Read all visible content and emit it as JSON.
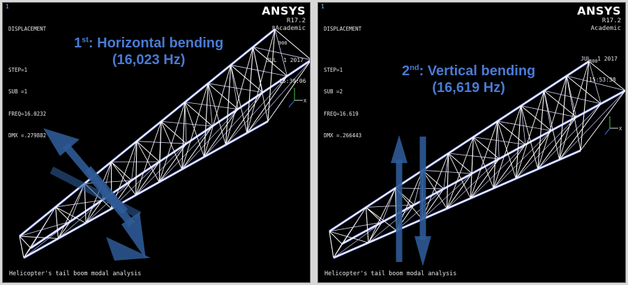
{
  "panels": [
    {
      "window_number": "1",
      "result_type": "DISPLACEMENT",
      "step": "STEP=1",
      "sub": "SUB =1",
      "freq": "FREQ=16.0232",
      "dmx": "DMX =.279882",
      "brand": "ANSYS",
      "version": "R17.2",
      "edition": "Academic",
      "date": "JUL  1 2017",
      "time": "15:39:06",
      "mode_ordinal": "1",
      "mode_ordinal_suffix": "st",
      "mode_title": ":  Horizontal bending",
      "mode_freq": "(16,023 Hz)",
      "caption": "Helicopter's tail boom modal analysis",
      "node_labels": [
        "B",
        "900",
        "X"
      ]
    },
    {
      "window_number": "1",
      "result_type": "DISPLACEMENT",
      "step": "STEP=1",
      "sub": "SUB =2",
      "freq": "FREQ=16.619",
      "dmx": "DMX =.266443",
      "brand": "ANSYS",
      "version": "R17.2",
      "edition": "Academic",
      "date": "JUL  1 2017",
      "time": "15:53:38",
      "mode_ordinal": "2",
      "mode_ordinal_suffix": "nd",
      "mode_title": ": Vertical bending",
      "mode_freq": "(16,619 Hz)",
      "caption": "Helicopter's tail boom modal analysis",
      "node_labels": [
        "800",
        "X"
      ]
    }
  ],
  "colors": {
    "background": "#000000",
    "truss": "#ffffff",
    "mesh_edge": "#9aa8ff",
    "annotation": "#4a7bd4",
    "arrow": "#2e5a96",
    "triad_x": "#e0e0e0",
    "triad_y": "#3fd13f"
  }
}
